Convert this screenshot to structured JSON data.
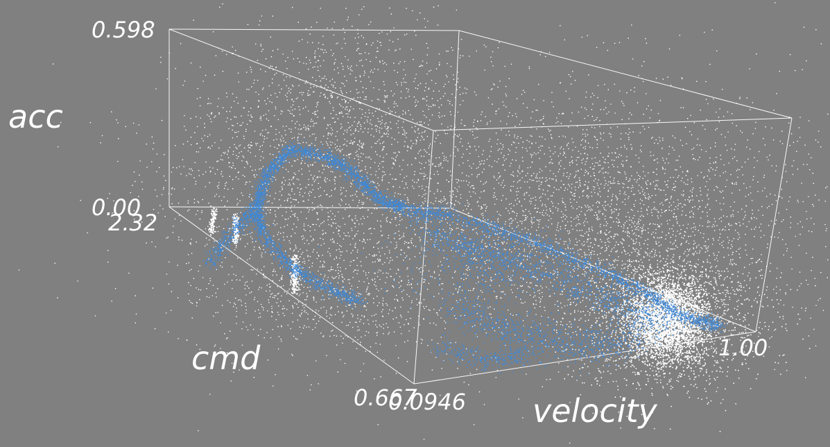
{
  "chart_data": {
    "type": "scatter",
    "projection": "3d",
    "axes": {
      "x": {
        "label": "velocity",
        "min_label": "0.0946",
        "max_label": "1.00",
        "range": [
          0.0946,
          1.0
        ]
      },
      "y": {
        "label": "cmd",
        "min_label": "0.667",
        "max_label": "2.32",
        "range": [
          0.667,
          2.32
        ]
      },
      "z": {
        "label": "acc",
        "min_label": "0.00",
        "max_label": "0.598",
        "range": [
          0.0,
          0.598
        ]
      }
    },
    "series": [
      {
        "color": "#ffffff"
      },
      {
        "color": "#3f88d6"
      }
    ],
    "grid": false,
    "box": true,
    "background": "#808080"
  }
}
